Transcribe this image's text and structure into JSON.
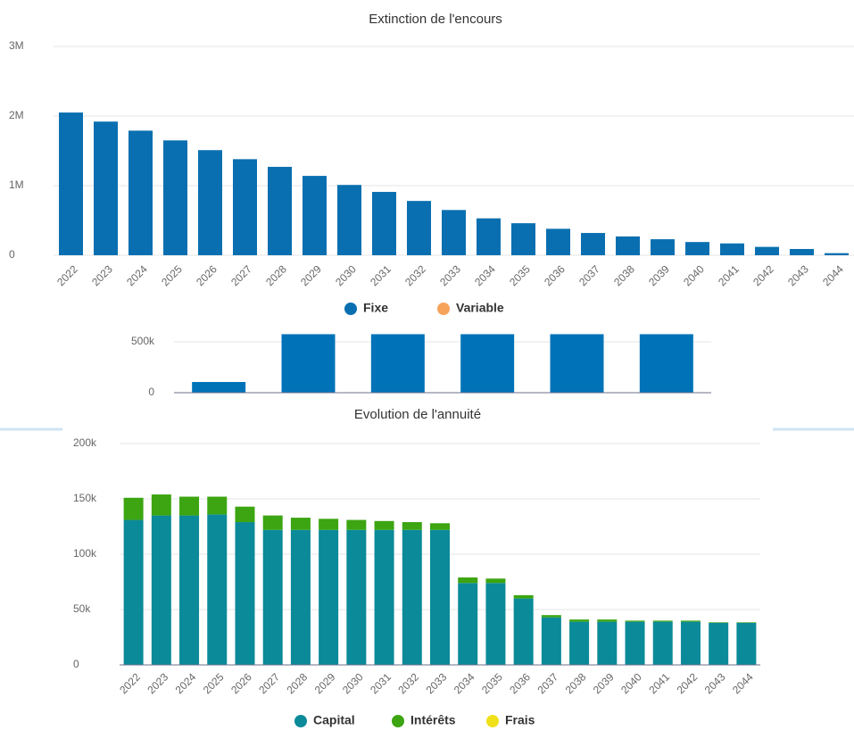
{
  "chart_data": [
    {
      "type": "bar",
      "title": "Extinction de l'encours",
      "categories": [
        "2022",
        "2023",
        "2024",
        "2025",
        "2026",
        "2027",
        "2028",
        "2029",
        "2030",
        "2031",
        "2032",
        "2033",
        "2034",
        "2035",
        "2036",
        "2037",
        "2038",
        "2039",
        "2040",
        "2041",
        "2042",
        "2043",
        "2044"
      ],
      "series": [
        {
          "name": "Fixe",
          "color": "#0a6fb0",
          "values": [
            2050000,
            1920000,
            1790000,
            1650000,
            1510000,
            1380000,
            1270000,
            1140000,
            1010000,
            910000,
            780000,
            650000,
            530000,
            460000,
            380000,
            320000,
            270000,
            230000,
            190000,
            170000,
            120000,
            90000,
            30000
          ]
        },
        {
          "name": "Variable",
          "color": "#f7a35c",
          "values": [
            null,
            null,
            null,
            null,
            null,
            null,
            null,
            null,
            null,
            null,
            null,
            null,
            null,
            null,
            null,
            null,
            null,
            null,
            null,
            null,
            null,
            null,
            null
          ]
        }
      ],
      "ylim": [
        0,
        3000000
      ],
      "yticks": [
        0,
        {
          "value": 1000000,
          "label": "1M"
        },
        {
          "value": 2000000,
          "label": "2M"
        },
        {
          "value": 3000000,
          "label": "3M"
        }
      ],
      "grid": true
    },
    {
      "type": "bar",
      "categories": [
        null,
        null,
        null,
        null,
        null,
        null
      ],
      "values": [
        105000,
        575000,
        575000,
        575000,
        575000,
        575000
      ],
      "color": "#0073b8",
      "ylim": [
        0,
        600000
      ],
      "yticks": [
        0,
        {
          "value": 500000,
          "label": "500k"
        }
      ],
      "grid": true
    },
    {
      "type": "stacked_bar",
      "title": "Evolution de l'annuité",
      "categories": [
        "2022",
        "2023",
        "2024",
        "2025",
        "2026",
        "2027",
        "2028",
        "2029",
        "2030",
        "2031",
        "2032",
        "2033",
        "2034",
        "2035",
        "2036",
        "2037",
        "2038",
        "2039",
        "2040",
        "2041",
        "2042",
        "2043",
        "2044"
      ],
      "series": [
        {
          "name": "Capital",
          "color": "#0b8a99",
          "values": [
            131000,
            135000,
            135000,
            136000,
            129000,
            122000,
            122000,
            122000,
            122000,
            122000,
            122000,
            122000,
            74000,
            74000,
            60000,
            43000,
            39000,
            39000,
            39000,
            39000,
            39000,
            38000,
            38000
          ]
        },
        {
          "name": "Intérêts",
          "color": "#3ca511",
          "values": [
            20000,
            19000,
            17000,
            16000,
            14000,
            13000,
            11000,
            10000,
            9000,
            8000,
            7000,
            6000,
            5000,
            4000,
            3000,
            2000,
            2000,
            2000,
            1000,
            1000,
            1000,
            500,
            500
          ]
        },
        {
          "name": "Frais",
          "color": "#f0e01a",
          "values": [
            null,
            null,
            null,
            null,
            null,
            null,
            null,
            null,
            null,
            null,
            null,
            null,
            null,
            null,
            null,
            null,
            null,
            null,
            null,
            null,
            null,
            null,
            null
          ]
        }
      ],
      "ylim": [
        0,
        200000
      ],
      "yticks": [
        0,
        {
          "value": 50000,
          "label": "50k"
        },
        {
          "value": 100000,
          "label": "100k"
        },
        {
          "value": 150000,
          "label": "150k"
        },
        {
          "value": 200000,
          "label": "200k"
        }
      ],
      "grid": true
    }
  ]
}
